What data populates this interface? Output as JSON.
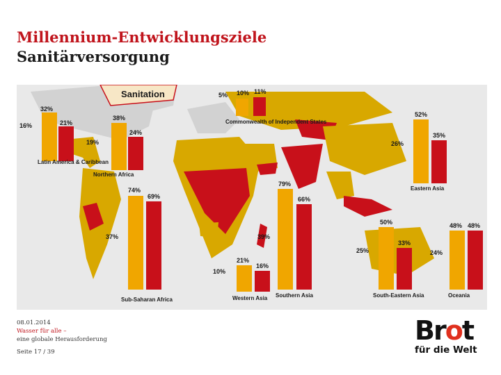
{
  "header": {
    "title_line1": "Millennium-Entwicklungsziele",
    "title_line2": "Sanitärversorgung"
  },
  "figure": {
    "banner": "Sanitation",
    "colors": {
      "bar_early": "#f0a600",
      "bar_late": "#c8101a",
      "map_land": "#d8a800",
      "map_highlight": "#c8101a",
      "background": "#e9e9e9"
    },
    "regions": [
      {
        "name": "Latin America & Caribbean",
        "early": "32%",
        "late": "21%",
        "change": "16%"
      },
      {
        "name": "Northern Africa",
        "early": "38%",
        "late": "24%",
        "change": "19%"
      },
      {
        "name": "Commonwealth of Independent States",
        "early": "10%",
        "late": "11%",
        "change": "5%"
      },
      {
        "name": "Eastern Asia",
        "early": "52%",
        "late": "35%",
        "change": "26%"
      },
      {
        "name": "Sub-Saharan Africa",
        "early": "74%",
        "late": "69%",
        "change": "37%"
      },
      {
        "name": "Western Asia",
        "early": "21%",
        "late": "16%",
        "change": "10%"
      },
      {
        "name": "Southern Asia",
        "early": "79%",
        "late": "66%",
        "change": "39%"
      },
      {
        "name": "South-Eastern Asia",
        "early": "50%",
        "late": "33%",
        "change": "25%"
      },
      {
        "name": "Oceania",
        "early": "48%",
        "late": "48%",
        "change": "24%"
      }
    ]
  },
  "footer": {
    "date": "08.01.2014",
    "topic_line1": "Wasser für alle –",
    "topic_line2": "eine globale Herausforderung",
    "page": "Seite 17 / 39"
  },
  "logo": {
    "word_prefix": "Br",
    "word_o": "o",
    "word_suffix": "t",
    "tagline": "für die Welt"
  }
}
